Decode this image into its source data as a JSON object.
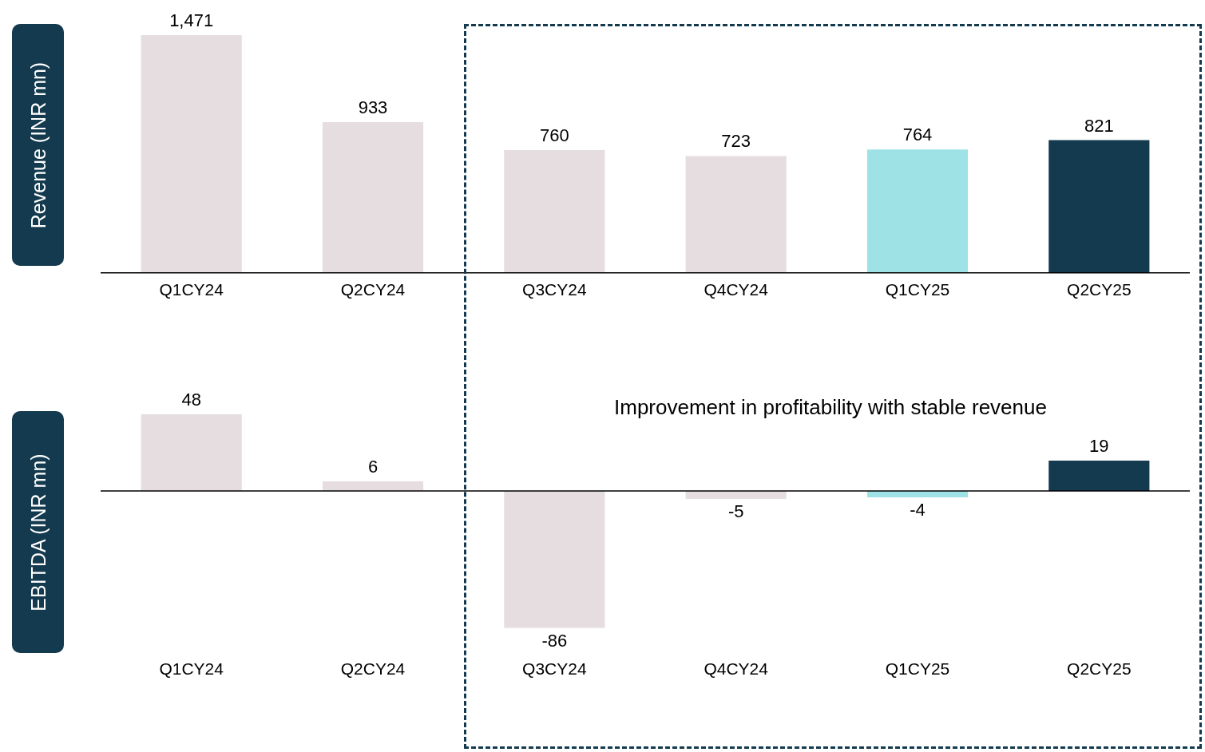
{
  "chart_data": [
    {
      "type": "bar",
      "ylabel": "Revenue (INR mn)",
      "categories": [
        "Q1CY24",
        "Q2CY24",
        "Q3CY24",
        "Q4CY24",
        "Q1CY25",
        "Q2CY25"
      ],
      "values": [
        1471,
        933,
        760,
        723,
        764,
        821
      ],
      "colors": [
        "#e6dde0",
        "#e6dde0",
        "#e6dde0",
        "#e6dde0",
        "#9ee2e6",
        "#133a4e"
      ],
      "value_labels": [
        "1,471",
        "933",
        "760",
        "723",
        "764",
        "821"
      ],
      "tick_labels": "x",
      "grid": false,
      "legend": false
    },
    {
      "type": "bar",
      "ylabel": "EBITDA (INR mn)",
      "categories": [
        "Q1CY24",
        "Q2CY24",
        "Q3CY24",
        "Q4CY24",
        "Q1CY25",
        "Q2CY25"
      ],
      "values": [
        48,
        6,
        -86,
        -5,
        -4,
        19
      ],
      "colors": [
        "#e6dde0",
        "#e6dde0",
        "#e6dde0",
        "#e6dde0",
        "#9ee2e6",
        "#133a4e"
      ],
      "data_labels": true,
      "tick_labels": "x",
      "grid": false,
      "legend": false,
      "annotations": [
        "Improvement in profitability with stable revenue"
      ]
    }
  ]
}
